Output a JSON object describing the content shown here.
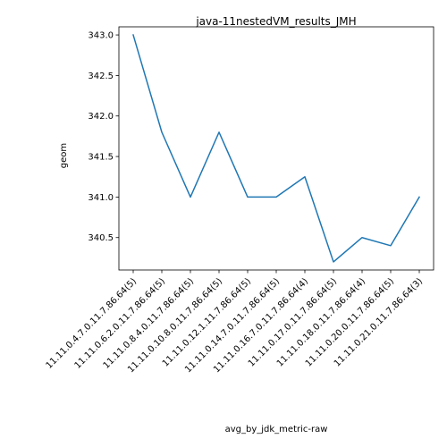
{
  "chart_data": {
    "type": "line",
    "title": "java-11nestedVM_results_JMH",
    "xlabel": "avg_by_jdk_metric-raw",
    "ylabel": "geom",
    "categories": [
      "11.11.0.4.7.0.11.7.86.64(5)",
      "11.11.0.6.2.0.11.7.86.64(5)",
      "11.11.0.8.4.0.11.7.86.64(5)",
      "11.11.0.10.8.0.11.7.86.64(5)",
      "11.11.0.12.1.11.7.86.64(5)",
      "11.11.0.14.7.0.11.7.86.64(5)",
      "11.11.0.16.7.0.11.7.86.64(4)",
      "11.11.0.17.0.11.7.86.64(5)",
      "11.11.0.18.0.11.7.86.64(4)",
      "11.11.0.20.0.11.7.86.64(5)",
      "11.11.0.21.0.11.7.86.64(3)"
    ],
    "series": [
      {
        "values": [
          343.0,
          341.8,
          341.0,
          341.8,
          341.0,
          341.0,
          341.25,
          340.2,
          340.5,
          340.4,
          341.0
        ],
        "color": "#1f77b4"
      }
    ],
    "ylim": [
      340.1,
      343.1
    ],
    "yticks": [
      "340.5",
      "341.0",
      "341.5",
      "342.0",
      "342.5",
      "343.0"
    ],
    "grid": false,
    "legend": "none"
  }
}
